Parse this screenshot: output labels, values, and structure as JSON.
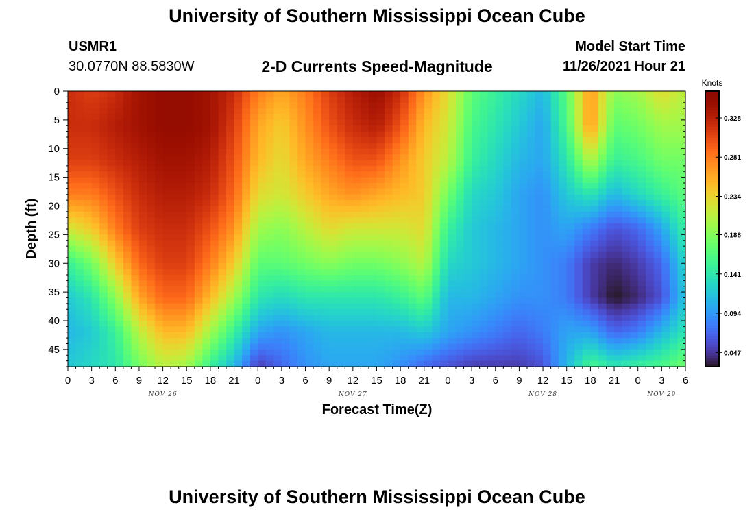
{
  "page": {
    "title": "University of Southern Mississippi Ocean Cube",
    "title_repeat": "University of Southern Mississippi Ocean Cube",
    "station_id": "USMR1",
    "station_coords": "30.0770N  88.5830W",
    "model_start_label": "Model Start Time",
    "model_start_value": "11/26/2021 Hour 21"
  },
  "chart_data": {
    "type": "heatmap",
    "title": "2-D Currents Speed-Magnitude",
    "xlabel": "Forecast Time(Z)",
    "ylabel": "Depth (ft)",
    "x_unit": "hours from Nov 26 00Z",
    "xlim": [
      0,
      78
    ],
    "ylim": [
      48,
      0
    ],
    "x_ticks": [
      0,
      3,
      6,
      9,
      12,
      15,
      18,
      21,
      24,
      27,
      30,
      33,
      36,
      39,
      42,
      45,
      48,
      51,
      54,
      57,
      60,
      63,
      66,
      69,
      72,
      75,
      78
    ],
    "x_tick_labels": [
      "0",
      "3",
      "6",
      "9",
      "12",
      "15",
      "18",
      "21",
      "0",
      "3",
      "6",
      "9",
      "12",
      "15",
      "18",
      "21",
      "0",
      "3",
      "6",
      "9",
      "12",
      "15",
      "18",
      "21",
      "0",
      "3",
      "6"
    ],
    "day_labels": [
      {
        "hour": 12,
        "label": "NOV 26"
      },
      {
        "hour": 36,
        "label": "NOV 27"
      },
      {
        "hour": 60,
        "label": "NOV 28"
      },
      {
        "hour": 75,
        "label": "NOV 29"
      }
    ],
    "y_ticks": [
      0,
      5,
      10,
      15,
      20,
      25,
      30,
      35,
      40,
      45
    ],
    "colorbar": {
      "unit": "Knots",
      "min": 0.03,
      "max": 0.36,
      "ticks": [
        0.047,
        0.094,
        0.141,
        0.188,
        0.234,
        0.281,
        0.328
      ],
      "colormap": "turbo"
    },
    "hours": [
      0,
      3,
      6,
      9,
      12,
      15,
      18,
      21,
      24,
      27,
      30,
      33,
      36,
      39,
      42,
      45,
      48,
      51,
      54,
      57,
      60,
      63,
      66,
      69,
      72,
      75,
      78
    ],
    "depths": [
      0,
      6,
      12,
      18,
      24,
      30,
      36,
      42,
      48
    ],
    "values": [
      [
        0.32,
        0.31,
        0.32,
        0.34,
        0.35,
        0.35,
        0.34,
        0.32,
        0.28,
        0.26,
        0.28,
        0.31,
        0.33,
        0.345,
        0.32,
        0.27,
        0.23,
        0.17,
        0.15,
        0.13,
        0.11,
        0.17,
        0.27,
        0.19,
        0.2,
        0.23,
        0.21
      ],
      [
        0.32,
        0.32,
        0.33,
        0.34,
        0.35,
        0.35,
        0.34,
        0.31,
        0.26,
        0.24,
        0.27,
        0.3,
        0.32,
        0.33,
        0.3,
        0.25,
        0.22,
        0.16,
        0.14,
        0.12,
        0.1,
        0.16,
        0.27,
        0.17,
        0.18,
        0.2,
        0.2
      ],
      [
        0.31,
        0.31,
        0.32,
        0.33,
        0.34,
        0.34,
        0.33,
        0.3,
        0.25,
        0.23,
        0.26,
        0.28,
        0.3,
        0.3,
        0.27,
        0.24,
        0.21,
        0.15,
        0.13,
        0.11,
        0.1,
        0.14,
        0.21,
        0.15,
        0.16,
        0.18,
        0.18
      ],
      [
        0.28,
        0.28,
        0.3,
        0.32,
        0.33,
        0.33,
        0.32,
        0.29,
        0.23,
        0.22,
        0.24,
        0.26,
        0.27,
        0.26,
        0.25,
        0.24,
        0.18,
        0.13,
        0.12,
        0.1,
        0.09,
        0.12,
        0.14,
        0.11,
        0.13,
        0.15,
        0.17
      ],
      [
        0.22,
        0.24,
        0.28,
        0.31,
        0.32,
        0.32,
        0.3,
        0.27,
        0.2,
        0.19,
        0.21,
        0.23,
        0.22,
        0.22,
        0.22,
        0.23,
        0.15,
        0.12,
        0.11,
        0.1,
        0.09,
        0.1,
        0.08,
        0.06,
        0.07,
        0.1,
        0.15
      ],
      [
        0.15,
        0.18,
        0.24,
        0.29,
        0.31,
        0.31,
        0.28,
        0.24,
        0.17,
        0.17,
        0.18,
        0.19,
        0.18,
        0.18,
        0.19,
        0.21,
        0.13,
        0.12,
        0.11,
        0.1,
        0.09,
        0.08,
        0.05,
        0.04,
        0.05,
        0.07,
        0.13
      ],
      [
        0.12,
        0.14,
        0.19,
        0.26,
        0.29,
        0.29,
        0.25,
        0.2,
        0.14,
        0.13,
        0.14,
        0.14,
        0.14,
        0.14,
        0.15,
        0.17,
        0.11,
        0.11,
        0.1,
        0.09,
        0.09,
        0.08,
        0.05,
        0.03,
        0.04,
        0.06,
        0.12
      ],
      [
        0.11,
        0.12,
        0.15,
        0.21,
        0.25,
        0.25,
        0.2,
        0.15,
        0.1,
        0.09,
        0.1,
        0.11,
        0.11,
        0.11,
        0.11,
        0.12,
        0.1,
        0.09,
        0.08,
        0.07,
        0.08,
        0.1,
        0.1,
        0.07,
        0.08,
        0.11,
        0.14
      ],
      [
        0.12,
        0.13,
        0.14,
        0.18,
        0.21,
        0.2,
        0.15,
        0.11,
        0.05,
        0.07,
        0.09,
        0.1,
        0.1,
        0.1,
        0.09,
        0.07,
        0.06,
        0.05,
        0.05,
        0.05,
        0.06,
        0.11,
        0.16,
        0.14,
        0.15,
        0.16,
        0.18
      ]
    ]
  }
}
